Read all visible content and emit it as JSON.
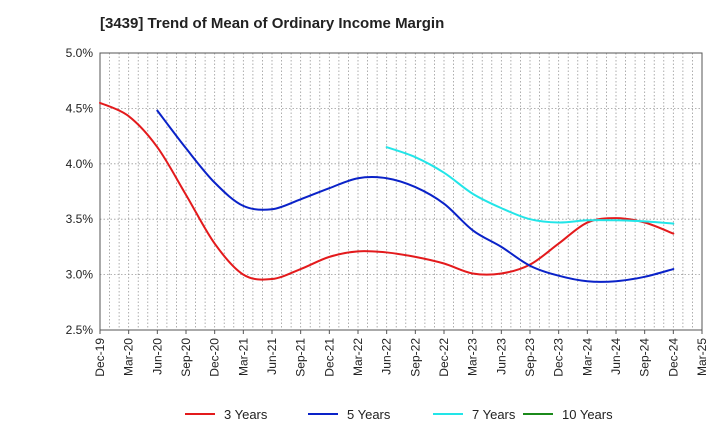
{
  "title": "[3439]  Trend of Mean of Ordinary Income Margin",
  "chart_data": {
    "type": "line",
    "title": "[3439]  Trend of Mean of Ordinary Income Margin",
    "xlabel": "",
    "ylabel": "",
    "categories": [
      "Dec-19",
      "Mar-20",
      "Jun-20",
      "Sep-20",
      "Dec-20",
      "Mar-21",
      "Jun-21",
      "Sep-21",
      "Dec-21",
      "Mar-22",
      "Jun-22",
      "Sep-22",
      "Dec-22",
      "Mar-23",
      "Jun-23",
      "Sep-23",
      "Dec-23",
      "Mar-24",
      "Jun-24",
      "Sep-24",
      "Dec-24",
      "Mar-25"
    ],
    "ylim": [
      2.5,
      5.0
    ],
    "yticks": [
      "2.5%",
      "3.0%",
      "3.5%",
      "4.0%",
      "4.5%",
      "5.0%"
    ],
    "grid": true,
    "legend_position": "bottom",
    "series": [
      {
        "name": "3 Years",
        "color": "#e31a1c",
        "values": [
          4.55,
          4.43,
          4.15,
          3.72,
          3.28,
          3.0,
          2.96,
          3.05,
          3.16,
          3.21,
          3.2,
          3.16,
          3.1,
          3.01,
          3.01,
          3.09,
          3.28,
          3.47,
          3.51,
          3.47,
          3.37,
          null
        ]
      },
      {
        "name": "5 Years",
        "color": "#0a22c8",
        "values": [
          null,
          null,
          4.48,
          4.14,
          3.83,
          3.62,
          3.59,
          3.68,
          3.78,
          3.87,
          3.87,
          3.79,
          3.64,
          3.4,
          3.25,
          3.08,
          2.99,
          2.94,
          2.94,
          2.98,
          3.05,
          null
        ]
      },
      {
        "name": "7 Years",
        "color": "#22e5e8",
        "values": [
          null,
          null,
          null,
          null,
          null,
          null,
          null,
          null,
          null,
          null,
          4.15,
          4.06,
          3.92,
          3.73,
          3.6,
          3.5,
          3.47,
          3.49,
          3.49,
          3.48,
          3.46,
          null
        ]
      },
      {
        "name": "10 Years",
        "color": "#1b8a1b",
        "values": [
          null,
          null,
          null,
          null,
          null,
          null,
          null,
          null,
          null,
          null,
          null,
          null,
          null,
          null,
          null,
          null,
          null,
          null,
          null,
          null,
          null,
          null
        ]
      }
    ]
  }
}
